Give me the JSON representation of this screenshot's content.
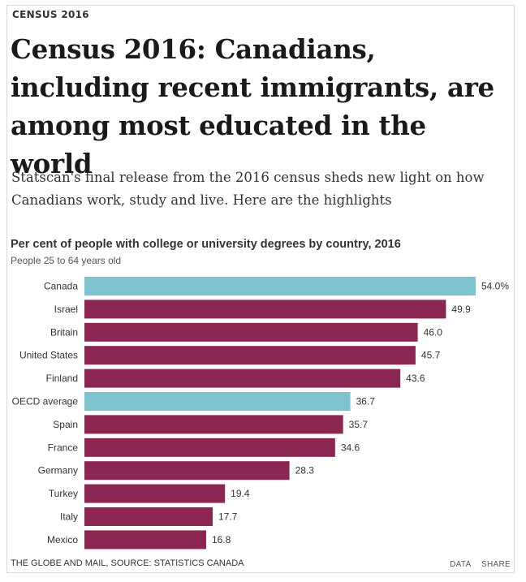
{
  "kicker": "CENSUS 2016",
  "headline": "Census 2016: Canadians, including recent immigrants, are among most educated in the world",
  "dek": "Statscan's final release from the 2016 census sheds new light on how Canadians work, study and live. Here are the highlights",
  "colors": {
    "highlight": "#7ec3cd",
    "default": "#8b2552"
  },
  "chart_data": {
    "type": "bar",
    "orientation": "horizontal",
    "title": "Per cent of people with college or university degrees by country, 2016",
    "subtitle": "People 25 to 64 years old",
    "categories": [
      "Canada",
      "Israel",
      "Britain",
      "United States",
      "Finland",
      "OECD average",
      "Spain",
      "France",
      "Germany",
      "Turkey",
      "Italy",
      "Mexico"
    ],
    "values": [
      54.0,
      49.9,
      46.0,
      45.7,
      43.6,
      36.7,
      35.7,
      34.6,
      28.3,
      19.4,
      17.7,
      16.8
    ],
    "value_labels": [
      "54.0%",
      "49.9",
      "46.0",
      "45.7",
      "43.6",
      "36.7",
      "35.7",
      "34.6",
      "28.3",
      "19.4",
      "17.7",
      "16.8"
    ],
    "highlighted": [
      "Canada",
      "OECD average"
    ],
    "xlim": [
      0,
      54
    ],
    "grid": false,
    "legend": "none"
  },
  "footer": {
    "source": "THE GLOBE AND MAIL, SOURCE: STATISTICS CANADA",
    "data_link": "DATA",
    "share_link": "SHARE"
  }
}
